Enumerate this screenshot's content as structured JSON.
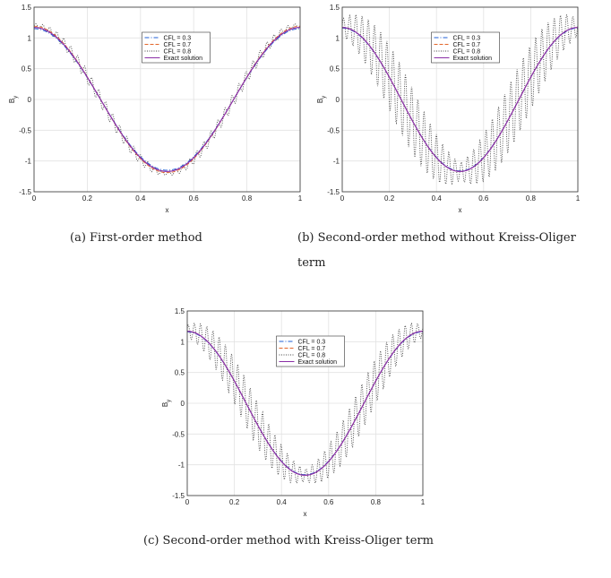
{
  "chart_data": [
    {
      "type": "line",
      "id": "a",
      "caption": "(a) First-order method",
      "xlabel": "x",
      "ylabel": "B",
      "ylabel_sub": "y",
      "xlim": [
        0,
        1
      ],
      "ylim": [
        -1.5,
        1.5
      ],
      "xticks": [
        "0",
        "0.2",
        "0.4",
        "0.6",
        "0.8",
        "1"
      ],
      "yticks": [
        "-1.5",
        "-1",
        "-0.5",
        "0",
        "0.5",
        "1",
        "1.5"
      ],
      "grid": true,
      "legend_position": "top-center",
      "series": [
        {
          "name": "CFL = 0.3",
          "color": "#1f5fd6",
          "style": "dashdot",
          "amplitude": 1.15
        },
        {
          "name": "CFL = 0.7",
          "color": "#e3662a",
          "style": "dashed",
          "amplitude": 1.19
        },
        {
          "name": "CFL = 0.8",
          "color": "#444444",
          "style": "dotted",
          "amplitude": 1.2,
          "oscillation": 0.11
        },
        {
          "name": "Exact solution",
          "color": "#8b2fa6",
          "style": "solid",
          "amplitude": 1.17
        }
      ]
    },
    {
      "type": "line",
      "id": "b",
      "caption": "(b) Second-order method without Kreiss-Oliger term",
      "xlabel": "x",
      "ylabel": "B",
      "ylabel_sub": "y",
      "xlim": [
        0,
        1
      ],
      "ylim": [
        -1.5,
        1.5
      ],
      "xticks": [
        "0",
        "0.2",
        "0.4",
        "0.6",
        "0.8",
        "1"
      ],
      "yticks": [
        "-1.5",
        "-1",
        "-0.5",
        "0",
        "0.5",
        "1",
        "1.5"
      ],
      "grid": true,
      "legend_position": "top-center",
      "series": [
        {
          "name": "CFL = 0.3",
          "color": "#1f5fd6",
          "style": "dashdot",
          "amplitude": 1.16
        },
        {
          "name": "CFL = 0.7",
          "color": "#e3662a",
          "style": "dashed",
          "amplitude": 1.17
        },
        {
          "name": "CFL = 0.8",
          "color": "#444444",
          "style": "dotted",
          "amplitude": 1.17,
          "oscillation": 0.55
        },
        {
          "name": "Exact solution",
          "color": "#8b2fa6",
          "style": "solid",
          "amplitude": 1.17
        }
      ]
    },
    {
      "type": "line",
      "id": "c",
      "caption": "(c) Second-order method with Kreiss-Oliger term",
      "xlabel": "x",
      "ylabel": "B",
      "ylabel_sub": "y",
      "xlim": [
        0,
        1
      ],
      "ylim": [
        -1.5,
        1.5
      ],
      "xticks": [
        "0",
        "0.2",
        "0.4",
        "0.6",
        "0.8",
        "1"
      ],
      "yticks": [
        "-1.5",
        "-1",
        "-0.5",
        "0",
        "0.5",
        "1",
        "1.5"
      ],
      "grid": true,
      "legend_position": "top-center",
      "series": [
        {
          "name": "CFL = 0.3",
          "color": "#1f5fd6",
          "style": "dashdot",
          "amplitude": 1.16
        },
        {
          "name": "CFL = 0.7",
          "color": "#e3662a",
          "style": "dashed",
          "amplitude": 1.17
        },
        {
          "name": "CFL = 0.8",
          "color": "#444444",
          "style": "dotted",
          "amplitude": 1.17,
          "oscillation": 0.38
        },
        {
          "name": "Exact solution",
          "color": "#8b2fa6",
          "style": "solid",
          "amplitude": 1.17
        }
      ]
    }
  ]
}
